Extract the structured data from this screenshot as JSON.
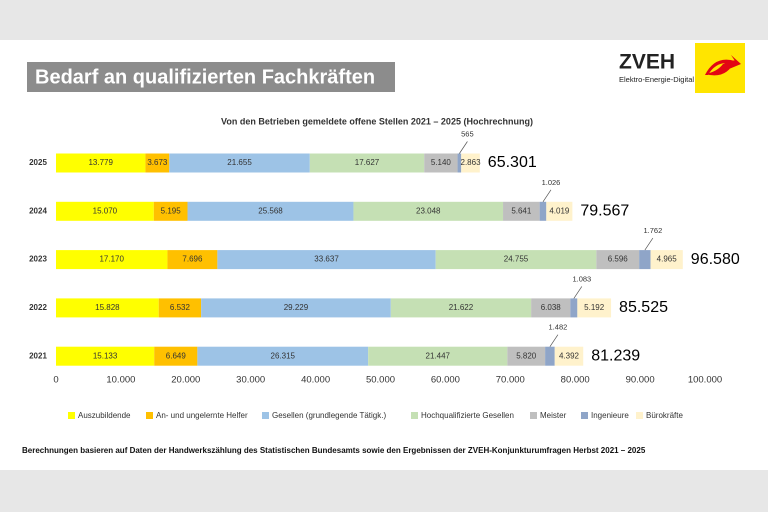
{
  "header": {
    "title": "Bedarf an qualifizierten Fachkräften",
    "logo_name": "ZVEH",
    "logo_tagline": "Elektro-Energie-Digital"
  },
  "chart_data": {
    "type": "stacked_barh",
    "title": "Von den Betrieben gemeldete offene Stellen 2021 – 2025 (Hochrechnung)",
    "categories": [
      "2025",
      "2024",
      "2023",
      "2022",
      "2021"
    ],
    "series": [
      {
        "name": "Auszubildende",
        "color": "#ffff00",
        "values": [
          13779,
          15070,
          17170,
          15828,
          15133
        ],
        "value_labels": [
          "13.779",
          "15.070",
          "17.170",
          "15.828",
          "15.133"
        ]
      },
      {
        "name": "An- und ungelernte Helfer",
        "color": "#ffc000",
        "values": [
          3673,
          5195,
          7696,
          6532,
          6649
        ],
        "value_labels": [
          "3.673",
          "5.195",
          "7.696",
          "6.532",
          "6.649"
        ]
      },
      {
        "name": "Gesellen (grundlegende Tätigk.)",
        "color": "#9dc3e6",
        "values": [
          21655,
          25568,
          33637,
          29229,
          26315
        ],
        "value_labels": [
          "21.655",
          "25.568",
          "33.637",
          "29.229",
          "26.315"
        ]
      },
      {
        "name": "Hochqualifizierte Gesellen",
        "color": "#c5e0b4",
        "values": [
          17627,
          23048,
          24755,
          21622,
          21447
        ],
        "value_labels": [
          "17.627",
          "23.048",
          "24.755",
          "21.622",
          "21.447"
        ]
      },
      {
        "name": "Meister",
        "color": "#bfbfbf",
        "values": [
          5140,
          5641,
          6596,
          6038,
          5820
        ],
        "value_labels": [
          "5.140",
          "5.641",
          "6.596",
          "6.038",
          "5.820"
        ]
      },
      {
        "name": "Ingenieure",
        "color": "#8fa5c8",
        "values": [
          565,
          1026,
          1762,
          1083,
          1482
        ],
        "value_labels": [
          "565",
          "1.026",
          "1.762",
          "1.083",
          "1.482"
        ]
      },
      {
        "name": "Bürokräfte",
        "color": "#fff2cc",
        "values": [
          2863,
          4019,
          4965,
          5192,
          4392
        ],
        "value_labels": [
          "2.863",
          "4.019",
          "4.965",
          "5.192",
          "4.392"
        ]
      }
    ],
    "totals": {
      "values": [
        65301,
        79567,
        96580,
        85525,
        81239
      ],
      "value_labels": [
        "65.301",
        "79.567",
        "96.580",
        "85.525",
        "81.239"
      ]
    },
    "xlim": [
      0,
      100000
    ],
    "xticks": [
      0,
      {
        "value": 10000,
        "label": "10.000"
      },
      {
        "value": 20000,
        "label": "20.000"
      },
      {
        "value": 30000,
        "label": "30.000"
      },
      {
        "value": 40000,
        "label": "40.000"
      },
      {
        "value": 50000,
        "label": "50.000"
      },
      {
        "value": 60000,
        "label": "60.000"
      },
      {
        "value": 70000,
        "label": "70.000"
      },
      {
        "value": 80000,
        "label": "80.000"
      },
      {
        "value": 90000,
        "label": "90.000"
      },
      {
        "value": 100000,
        "label": "100.000"
      }
    ],
    "legend": "bottom",
    "note": "Berechnungen basieren auf Daten der Handwerkszählung des Statistischen Bundesamts sowie den Ergebnissen der ZVEH-Konjunkturumfragen Herbst 2021 – 2025"
  }
}
